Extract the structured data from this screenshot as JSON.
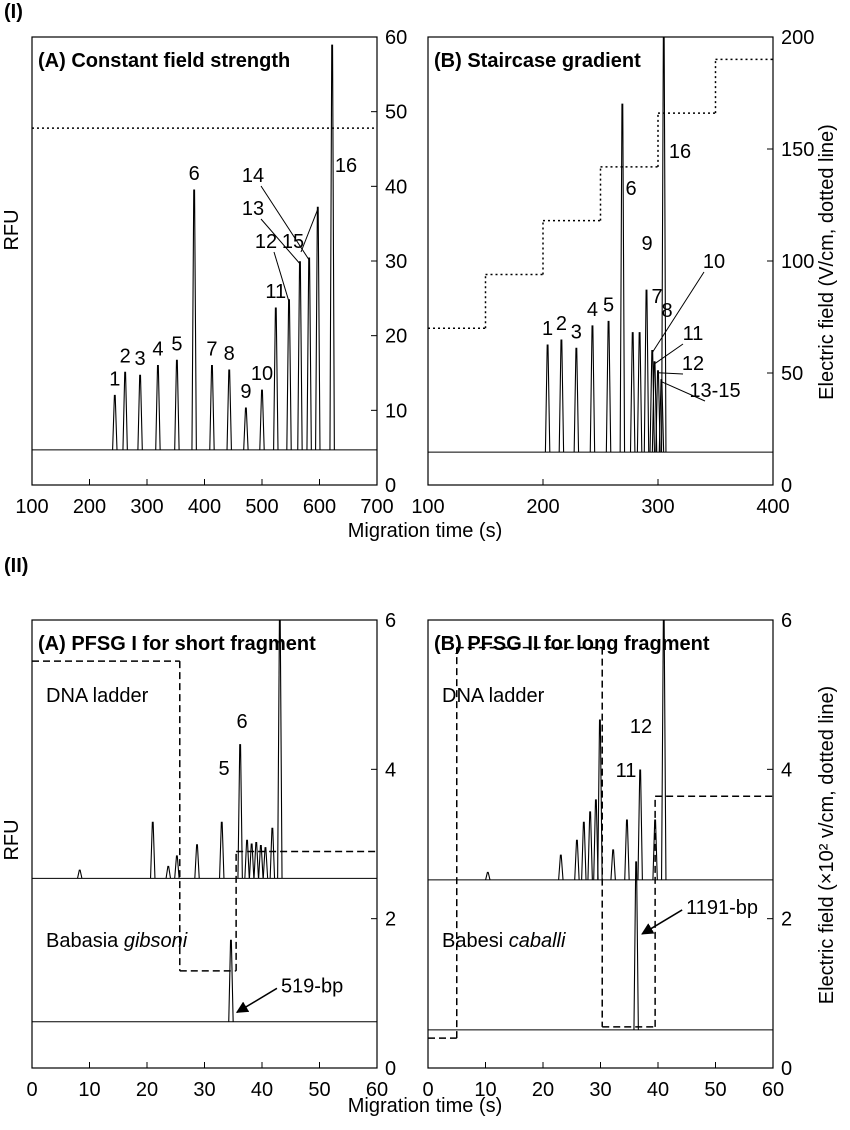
{
  "chart_data": [
    {
      "type": "electropherogram",
      "section": "(I)",
      "title": "(A) Constant field strength",
      "xlabel": "Migration time (s)",
      "ylabel": "RFU",
      "y2label": "Electric field (V/cm, dotted line)",
      "xlim": [
        100,
        700
      ],
      "xticks": [
        100,
        200,
        300,
        400,
        500,
        600,
        700
      ],
      "ylim": [
        0,
        60
      ],
      "yticks": [
        0,
        10,
        20,
        30,
        40,
        50,
        60
      ],
      "field": {
        "style": "dotted",
        "x": [
          100
        ],
        "values": [
          47.8
        ]
      },
      "traces": [
        {
          "baseline": 4.7,
          "peaks": {
            "x": [
              244,
              262,
              288,
              319,
              352,
              382,
              413,
              443,
              472,
              500,
              524,
              547,
              566,
              582,
              597,
              622
            ],
            "values": [
              12,
              15.1,
              14.7,
              16,
              16.7,
              39.5,
              16,
              15.4,
              10.3,
              12.7,
              23.7,
              24.8,
              29.9,
              30.4,
              37.2,
              58.9
            ],
            "labels": [
              "1",
              "2",
              "3",
              "4",
              "5",
              "6",
              "7",
              "8",
              "9",
              "10",
              "11",
              "12",
              "13",
              "14",
              "15",
              "16"
            ]
          }
        }
      ]
    },
    {
      "type": "electropherogram",
      "title": "(B) Staircase gradient",
      "xlim": [
        100,
        400
      ],
      "xticks": [
        100,
        200,
        300,
        400
      ],
      "ylim": [
        0,
        200
      ],
      "yticks": [
        0,
        50,
        100,
        150,
        200
      ],
      "field": {
        "style": "dotted",
        "x": [
          100,
          150,
          200,
          250,
          300,
          350
        ],
        "values": [
          70,
          94,
          118,
          142,
          166,
          190
        ]
      },
      "traces": [
        {
          "baseline": 14.7,
          "peaks": {
            "x": [
              204,
              216,
              229,
              243,
              257,
              269,
              278,
              284,
              290,
              295,
              297,
              300,
              303,
              305
            ],
            "values": [
              62.5,
              64.7,
              61,
              71,
              73,
              170,
              68,
              68,
              87,
              60,
              55,
              51,
              47,
              200
            ],
            "labels": [
              "1",
              "2",
              "3",
              "4",
              "5",
              "6",
              "7",
              "8",
              "9",
              "10",
              "11",
              "12",
              "13-15",
              "16"
            ]
          }
        }
      ]
    },
    {
      "type": "electropherogram",
      "section": "(II)",
      "title": "(A) PFSG I for short fragment",
      "xlabel": "Migration time (s)",
      "ylabel": "RFU",
      "y2label": "Electric field (×10² v/cm, dotted  line)",
      "xlim": [
        0,
        60
      ],
      "xticks": [
        0,
        10,
        20,
        30,
        40,
        50,
        60
      ],
      "ylim": [
        0,
        6
      ],
      "yticks": [
        0,
        2,
        4,
        6
      ],
      "field": {
        "style": "dashed",
        "x": [
          0,
          25.7,
          35.5
        ],
        "values": [
          5.45,
          1.3,
          2.9
        ]
      },
      "traces": [
        {
          "name": "DNA ladder",
          "baseline": 2.54,
          "peaks": {
            "x": [
              8.3,
              21.0,
              23.7,
              25.2,
              28.7,
              33.0,
              36.2,
              37.4,
              38.2,
              39.0,
              39.8,
              40.6,
              41.8,
              43.1
            ],
            "values": [
              2.65,
              3.29,
              2.7,
              2.84,
              2.99,
              3.29,
              4.33,
              3.05,
              3.0,
              3.02,
              2.98,
              2.95,
              3.21,
              6.0
            ],
            "labels": [
              null,
              null,
              null,
              null,
              null,
              "5",
              "6",
              null,
              null,
              null,
              null,
              null,
              null,
              null
            ]
          }
        },
        {
          "name": "Babasia",
          "name_italic": "gibsoni",
          "baseline": 0.62,
          "annotation": "519-bp",
          "peaks": {
            "x": [
              34.6
            ],
            "values": [
              1.71
            ],
            "labels": [
              null
            ]
          }
        }
      ]
    },
    {
      "type": "electropherogram",
      "title": "(B) PFSG II for long fragment",
      "xlim": [
        0,
        60
      ],
      "xticks": [
        0,
        10,
        20,
        30,
        40,
        50,
        60
      ],
      "ylim": [
        0,
        6
      ],
      "yticks": [
        0,
        2,
        4,
        6
      ],
      "field": {
        "style": "dashed",
        "x": [
          0,
          5,
          30.3,
          39.5
        ],
        "values": [
          0.4,
          5.63,
          0.55,
          3.64
        ]
      },
      "traces": [
        {
          "name": "DNA ladder",
          "baseline": 2.52,
          "peaks": {
            "x": [
              10.4,
              23.1,
              25.9,
              27.1,
              28.2,
              29.2,
              29.9,
              32.2,
              34.6,
              36.9,
              39.5,
              41.0
            ],
            "values": [
              2.62,
              2.85,
              3.05,
              3.29,
              3.43,
              3.59,
              4.66,
              2.92,
              3.32,
              3.99,
              3.32,
              6.0
            ],
            "labels": [
              null,
              null,
              null,
              null,
              null,
              null,
              null,
              null,
              "11",
              "12",
              null,
              null
            ]
          }
        },
        {
          "name": "Babesi",
          "name_italic": "caballi",
          "baseline": 0.51,
          "annotation": "1191-bp",
          "peaks": {
            "x": [
              36.2
            ],
            "values": [
              2.76
            ],
            "labels": [
              null
            ]
          }
        }
      ]
    }
  ]
}
